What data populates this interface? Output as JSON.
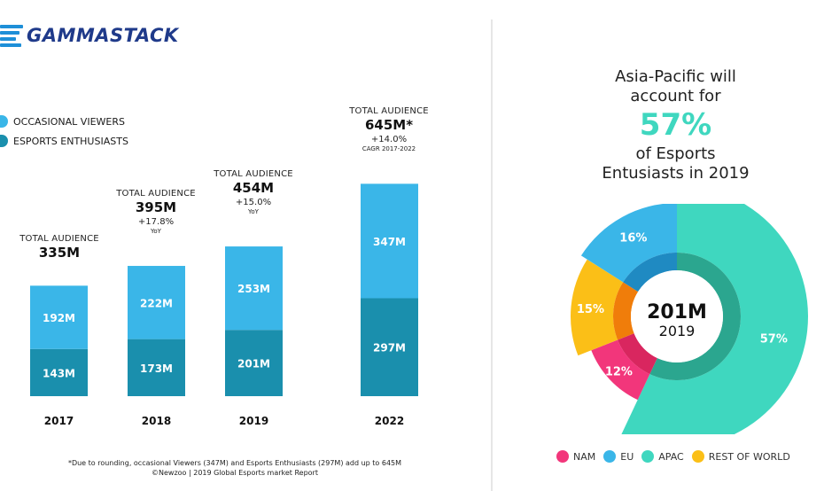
{
  "brand": {
    "name": "GAMMASTACK"
  },
  "colors": {
    "occasional": "#3ab6e8",
    "enthusiasts": "#1a8fad",
    "nam": "#f2367b",
    "eu": "#3ab6e8",
    "apac": "#3fd7bf",
    "rest": "#fbbf17"
  },
  "legend_left": {
    "items": [
      {
        "label": "OCCASIONAL VIEWERS",
        "color": "#3ab6e8"
      },
      {
        "label": "ESPORTS ENTHUSIASTS",
        "color": "#1a8fad"
      }
    ]
  },
  "bar_annotations": [
    {
      "label": "TOTAL AUDIENCE",
      "total": "335M",
      "growth": "",
      "sub": ""
    },
    {
      "label": "TOTAL AUDIENCE",
      "total": "395M",
      "growth": "+17.8%",
      "sub": "YoY"
    },
    {
      "label": "TOTAL AUDIENCE",
      "total": "454M",
      "growth": "+15.0%",
      "sub": "YoY"
    },
    {
      "label": "TOTAL AUDIENCE",
      "total": "645M*",
      "growth": "+14.0%",
      "sub": "CAGR 2017-2022"
    }
  ],
  "footnote": {
    "line1": "*Due to rounding, occasional Viewers (347M) and Esports Enthusiasts (297M) add up to 645M",
    "line2": "©Newzoo | 2019 Global Esports market Report"
  },
  "headline": {
    "line1": "Asia-Pacific will",
    "line2": "account for",
    "big": "57%",
    "line3": "of Esports",
    "line4": "Entusiasts in 2019"
  },
  "legend_right": {
    "items": [
      {
        "label": "NAM",
        "color": "#f2367b"
      },
      {
        "label": "EU",
        "color": "#3ab6e8"
      },
      {
        "label": "APAC",
        "color": "#3fd7bf"
      },
      {
        "label": "REST OF WORLD",
        "color": "#fbbf17"
      }
    ]
  },
  "chart_data": [
    {
      "type": "bar",
      "stacked": true,
      "categories": [
        "2017",
        "2018",
        "2019",
        "2022"
      ],
      "series": [
        {
          "name": "ESPORTS ENTHUSIASTS",
          "values": [
            143,
            173,
            201,
            297
          ],
          "labels": [
            "143M",
            "173M",
            "201M",
            "297M"
          ]
        },
        {
          "name": "OCCASIONAL VIEWERS",
          "values": [
            192,
            222,
            253,
            347
          ],
          "labels": [
            "192M",
            "222M",
            "253M",
            "347M"
          ]
        }
      ],
      "totals": [
        335,
        395,
        454,
        645
      ],
      "ylim": [
        0,
        660
      ]
    },
    {
      "type": "pie",
      "style": "donut",
      "center_value": "201M",
      "center_label": "2019",
      "categories": [
        "APAC",
        "NAM",
        "REST OF WORLD",
        "EU"
      ],
      "values": [
        57,
        12,
        15,
        16
      ],
      "labels": [
        "57%",
        "12%",
        "15%",
        "16%"
      ]
    }
  ]
}
